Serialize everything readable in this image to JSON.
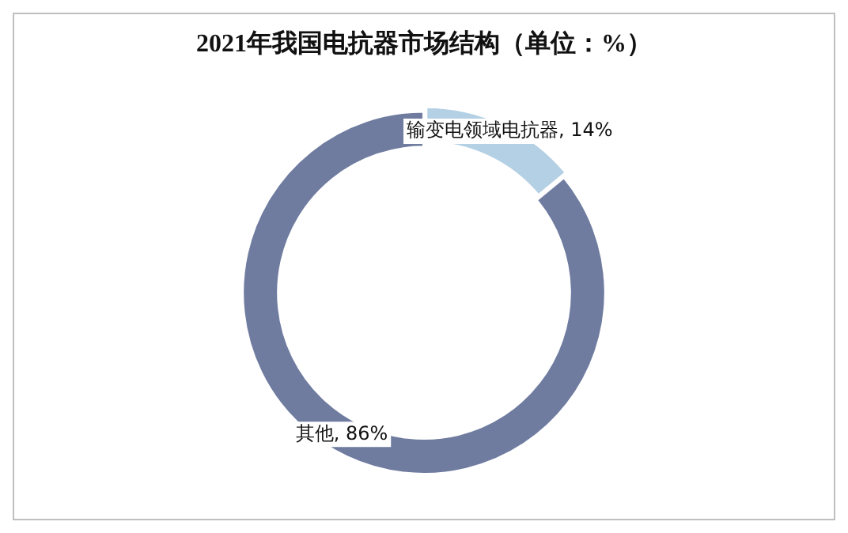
{
  "chart_data": {
    "type": "donut",
    "title": "2021年我国电抗器市场结构（单位：%）",
    "categories": [
      "输变电领域电抗器",
      "其他"
    ],
    "values": [
      14,
      86
    ],
    "colors": [
      "#b4d0e4",
      "#6f7ca0"
    ],
    "value_labels": [
      "14%",
      "86%"
    ],
    "legend": false
  }
}
